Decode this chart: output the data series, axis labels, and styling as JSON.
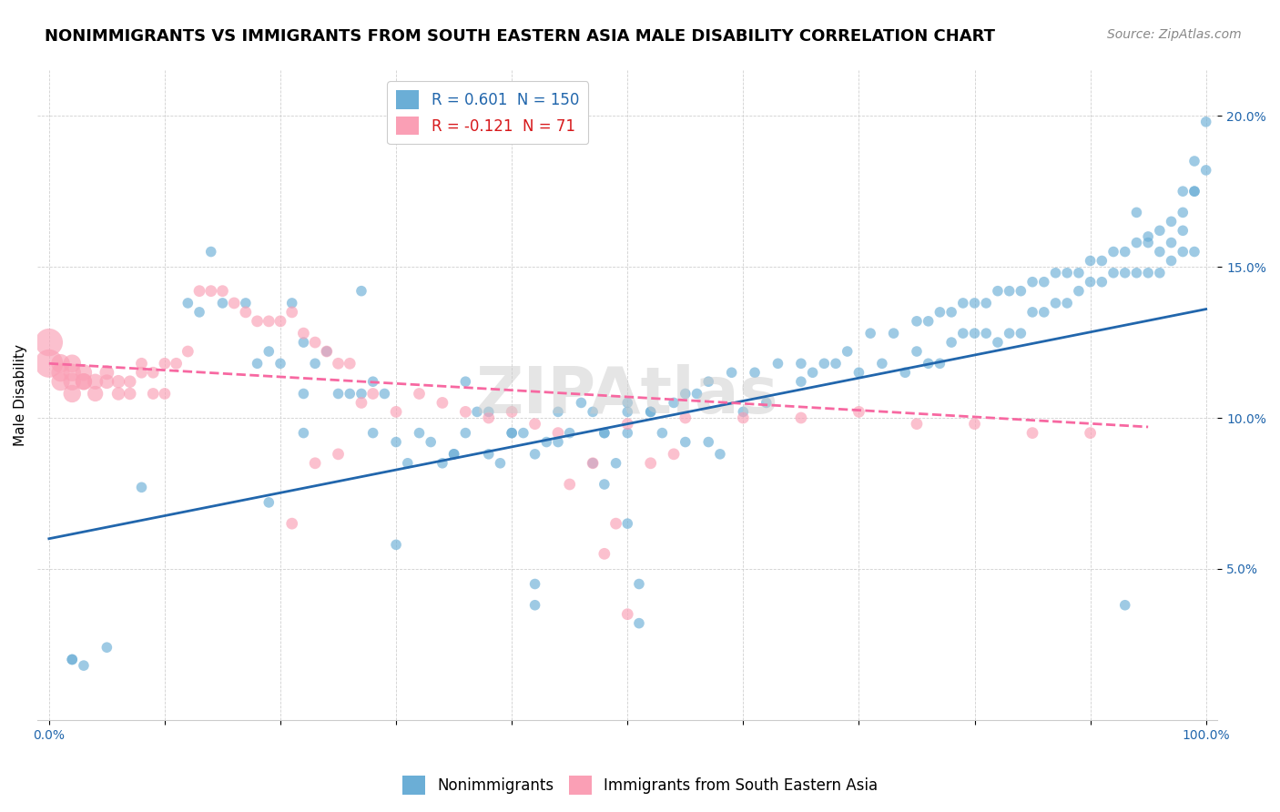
{
  "title": "NONIMMIGRANTS VS IMMIGRANTS FROM SOUTH EASTERN ASIA MALE DISABILITY CORRELATION CHART",
  "source": "Source: ZipAtlas.com",
  "ylabel": "Male Disability",
  "legend_label1": "Nonimmigrants",
  "legend_label2": "Immigrants from South Eastern Asia",
  "R1": 0.601,
  "N1": 150,
  "R2": -0.121,
  "N2": 71,
  "xlim": [
    -0.01,
    1.01
  ],
  "ylim": [
    0.0,
    0.215
  ],
  "xticks": [
    0.0,
    0.1,
    0.2,
    0.3,
    0.4,
    0.5,
    0.6,
    0.7,
    0.8,
    0.9,
    1.0
  ],
  "yticks": [
    0.05,
    0.1,
    0.15,
    0.2
  ],
  "ytick_labels": [
    "5.0%",
    "10.0%",
    "15.0%",
    "20.0%"
  ],
  "xtick_labels": [
    "0.0%",
    "",
    "",
    "",
    "",
    "",
    "",
    "",
    "",
    "",
    "100.0%"
  ],
  "color_blue": "#6baed6",
  "color_pink": "#fa9fb5",
  "color_blue_line": "#2166ac",
  "color_pink_line": "#f768a1",
  "color_text_blue": "#2166ac",
  "color_text_pink": "#d7191c",
  "background_color": "#ffffff",
  "grid_color": "#d0d0d0",
  "title_fontsize": 13,
  "source_fontsize": 10,
  "axis_label_fontsize": 11,
  "tick_fontsize": 10,
  "legend_fontsize": 12,
  "scatter_alpha": 0.65,
  "scatter_size_blue": 70,
  "scatter_size_pink": 70,
  "blue_x": [
    0.02,
    0.02,
    0.08,
    0.12,
    0.13,
    0.14,
    0.15,
    0.17,
    0.18,
    0.19,
    0.2,
    0.21,
    0.22,
    0.23,
    0.24,
    0.25,
    0.26,
    0.27,
    0.28,
    0.29,
    0.3,
    0.31,
    0.32,
    0.33,
    0.34,
    0.35,
    0.36,
    0.37,
    0.38,
    0.39,
    0.4,
    0.41,
    0.42,
    0.43,
    0.44,
    0.45,
    0.46,
    0.47,
    0.48,
    0.49,
    0.5,
    0.51,
    0.52,
    0.53,
    0.55,
    0.57,
    0.58,
    0.6,
    0.62,
    0.65,
    0.66,
    0.68,
    0.7,
    0.72,
    0.74,
    0.75,
    0.76,
    0.77,
    0.78,
    0.79,
    0.8,
    0.81,
    0.82,
    0.83,
    0.84,
    0.85,
    0.86,
    0.87,
    0.88,
    0.89,
    0.9,
    0.91,
    0.92,
    0.93,
    0.94,
    0.95,
    0.96,
    0.97,
    0.98,
    0.99,
    1.0,
    0.99,
    0.98,
    0.3,
    0.27,
    0.22,
    0.22,
    0.19,
    0.28,
    0.35,
    0.36,
    0.38,
    0.4,
    0.44,
    0.48,
    0.5,
    0.52,
    0.54,
    0.55,
    0.56,
    0.57,
    0.59,
    0.61,
    0.63,
    0.65,
    0.67,
    0.69,
    0.71,
    0.73,
    0.75,
    0.76,
    0.77,
    0.78,
    0.79,
    0.8,
    0.81,
    0.82,
    0.83,
    0.84,
    0.85,
    0.86,
    0.87,
    0.88,
    0.89,
    0.9,
    0.91,
    0.92,
    0.93,
    0.94,
    0.95,
    0.96,
    0.97,
    0.98,
    0.99,
    1.0,
    0.99,
    0.98,
    0.97,
    0.96,
    0.95,
    0.94,
    0.93,
    0.42,
    0.5,
    0.03,
    0.05,
    0.42,
    0.47,
    0.48,
    0.5,
    0.51
  ],
  "blue_y": [
    0.02,
    0.02,
    0.077,
    0.138,
    0.135,
    0.155,
    0.138,
    0.138,
    0.118,
    0.122,
    0.118,
    0.138,
    0.125,
    0.118,
    0.122,
    0.108,
    0.108,
    0.108,
    0.112,
    0.108,
    0.092,
    0.085,
    0.095,
    0.092,
    0.085,
    0.088,
    0.095,
    0.102,
    0.088,
    0.085,
    0.095,
    0.095,
    0.088,
    0.092,
    0.092,
    0.095,
    0.105,
    0.102,
    0.095,
    0.085,
    0.065,
    0.045,
    0.102,
    0.095,
    0.092,
    0.092,
    0.088,
    0.102,
    0.105,
    0.112,
    0.115,
    0.118,
    0.115,
    0.118,
    0.115,
    0.122,
    0.118,
    0.118,
    0.125,
    0.128,
    0.128,
    0.128,
    0.125,
    0.128,
    0.128,
    0.135,
    0.135,
    0.138,
    0.138,
    0.142,
    0.145,
    0.145,
    0.148,
    0.148,
    0.148,
    0.148,
    0.155,
    0.158,
    0.162,
    0.175,
    0.198,
    0.185,
    0.175,
    0.058,
    0.142,
    0.095,
    0.108,
    0.072,
    0.095,
    0.088,
    0.112,
    0.102,
    0.095,
    0.102,
    0.095,
    0.102,
    0.102,
    0.105,
    0.108,
    0.108,
    0.112,
    0.115,
    0.115,
    0.118,
    0.118,
    0.118,
    0.122,
    0.128,
    0.128,
    0.132,
    0.132,
    0.135,
    0.135,
    0.138,
    0.138,
    0.138,
    0.142,
    0.142,
    0.142,
    0.145,
    0.145,
    0.148,
    0.148,
    0.148,
    0.152,
    0.152,
    0.155,
    0.155,
    0.158,
    0.158,
    0.162,
    0.165,
    0.168,
    0.175,
    0.182,
    0.155,
    0.155,
    0.152,
    0.148,
    0.16,
    0.168,
    0.038,
    0.038,
    0.105,
    0.018,
    0.024,
    0.045,
    0.085,
    0.078,
    0.095,
    0.032
  ],
  "pink_x": [
    0.0,
    0.0,
    0.01,
    0.01,
    0.01,
    0.02,
    0.02,
    0.02,
    0.02,
    0.03,
    0.03,
    0.03,
    0.04,
    0.04,
    0.05,
    0.05,
    0.06,
    0.06,
    0.07,
    0.07,
    0.08,
    0.08,
    0.09,
    0.09,
    0.1,
    0.1,
    0.11,
    0.12,
    0.13,
    0.14,
    0.15,
    0.16,
    0.17,
    0.18,
    0.19,
    0.2,
    0.21,
    0.22,
    0.23,
    0.24,
    0.25,
    0.26,
    0.27,
    0.28,
    0.3,
    0.32,
    0.34,
    0.36,
    0.38,
    0.4,
    0.42,
    0.44,
    0.5,
    0.55,
    0.6,
    0.65,
    0.7,
    0.75,
    0.8,
    0.85,
    0.9,
    0.45,
    0.47,
    0.48,
    0.49,
    0.5,
    0.52,
    0.54,
    0.25,
    0.23,
    0.21
  ],
  "pink_y": [
    0.118,
    0.125,
    0.118,
    0.115,
    0.112,
    0.118,
    0.112,
    0.115,
    0.108,
    0.115,
    0.112,
    0.112,
    0.108,
    0.112,
    0.112,
    0.115,
    0.112,
    0.108,
    0.108,
    0.112,
    0.115,
    0.118,
    0.108,
    0.115,
    0.108,
    0.118,
    0.118,
    0.122,
    0.142,
    0.142,
    0.142,
    0.138,
    0.135,
    0.132,
    0.132,
    0.132,
    0.135,
    0.128,
    0.125,
    0.122,
    0.118,
    0.118,
    0.105,
    0.108,
    0.102,
    0.108,
    0.105,
    0.102,
    0.1,
    0.102,
    0.098,
    0.095,
    0.098,
    0.1,
    0.1,
    0.1,
    0.102,
    0.098,
    0.098,
    0.095,
    0.095,
    0.078,
    0.085,
    0.055,
    0.065,
    0.035,
    0.085,
    0.088,
    0.088,
    0.085,
    0.065
  ],
  "pink_sizes": [
    500,
    480,
    220,
    210,
    210,
    200,
    195,
    195,
    195,
    175,
    175,
    175,
    155,
    155,
    130,
    130,
    110,
    110,
    95,
    95,
    85,
    85,
    85,
    85,
    85,
    85,
    85,
    85,
    85,
    85,
    85,
    85,
    85,
    85,
    85,
    85,
    85,
    85,
    85,
    85,
    85,
    85,
    85,
    85,
    85,
    85,
    85,
    85,
    85,
    85,
    85,
    85,
    85,
    85,
    85,
    85,
    85,
    85,
    85,
    85,
    85,
    85,
    85,
    85,
    85,
    85,
    85,
    85,
    85,
    85,
    85
  ],
  "blue_line_x": [
    0.0,
    1.0
  ],
  "blue_line_y_start": 0.06,
  "blue_line_y_end": 0.136,
  "pink_line_x": [
    0.0,
    0.95
  ],
  "pink_line_y_start": 0.118,
  "pink_line_y_end": 0.097
}
